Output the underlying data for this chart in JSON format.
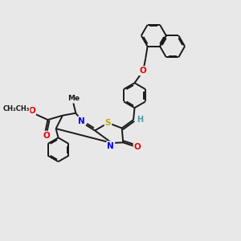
{
  "bg_color": "#e8e8e8",
  "bond_color": "#1a1a1a",
  "line_width": 1.4,
  "atom_colors": {
    "N": "#0000ee",
    "O": "#ee0000",
    "S": "#bbaa00",
    "C": "#1a1a1a",
    "H": "#4a9aaa"
  }
}
